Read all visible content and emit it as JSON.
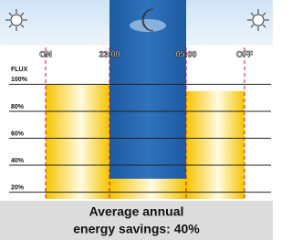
{
  "chart_data": {
    "type": "step",
    "y_label": "FLUX",
    "x_labels": [
      "ON",
      "23:00",
      "05:00",
      "OFF"
    ],
    "values": [
      100,
      30,
      95
    ],
    "color": "#f5c400",
    "ylim": [
      15,
      105
    ],
    "yticks": [
      {
        "value": 20,
        "label": "20%"
      },
      {
        "value": 40,
        "label": "40%"
      },
      {
        "value": 60,
        "label": "60%"
      },
      {
        "value": 80,
        "label": "80%"
      },
      {
        "value": 100,
        "label": "100%"
      }
    ],
    "grid": true,
    "caption": [
      "Average annual",
      "energy savings: 40%"
    ]
  }
}
